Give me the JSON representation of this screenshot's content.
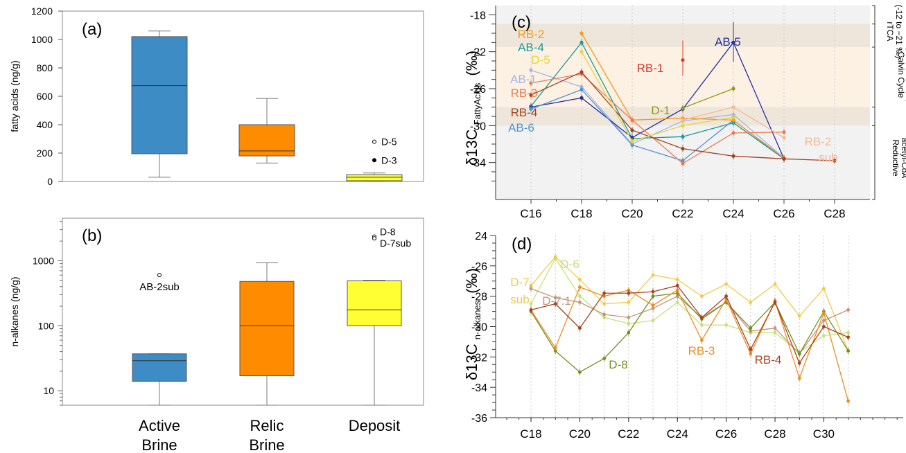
{
  "chart_data": [
    {
      "panel": "(a)",
      "type": "box",
      "ylabel": "fatty acids (ng/g)",
      "ylim": [
        0,
        1200
      ],
      "yticks": [
        0,
        200,
        400,
        600,
        800,
        1000,
        1200
      ],
      "grid": false,
      "boxes": [
        {
          "category": "Active Brine",
          "color": "#3e8cc6",
          "whisker_low": 30,
          "q1": 195,
          "median": 675,
          "q3": 1020,
          "whisker_high": 1060
        },
        {
          "category": "Relic Brine",
          "color": "#ff8c00",
          "whisker_low": 130,
          "q1": 180,
          "median": 215,
          "q3": 400,
          "whisker_high": 585
        },
        {
          "category": "Deposit",
          "color": "#ffff33",
          "whisker_low": 0,
          "q1": 5,
          "median": 30,
          "q3": 48,
          "whisker_high": 60
        }
      ],
      "outliers": [
        {
          "category": "Deposit",
          "value": 280,
          "label": "D-5",
          "filled": false
        },
        {
          "category": "Deposit",
          "value": 150,
          "label": "D-3",
          "filled": true
        }
      ]
    },
    {
      "panel": "(b)",
      "type": "box",
      "ylabel": "n-alkanes (ng/g)",
      "yscale": "log",
      "ylim": [
        6,
        4500
      ],
      "yticks": [
        10,
        100,
        1000
      ],
      "ytick_labels": [
        "10",
        "100",
        "1000"
      ],
      "categories": [
        "Active\nBrine",
        "Relic\nBrine",
        "Deposit"
      ],
      "boxes": [
        {
          "category": "Active Brine",
          "color": "#3e8cc6",
          "whisker_low": 6,
          "q1": 14,
          "median": 29,
          "q3": 37,
          "whisker_high": 37
        },
        {
          "category": "Relic Brine",
          "color": "#ff8c00",
          "whisker_low": 6,
          "q1": 17,
          "median": 100,
          "q3": 480,
          "whisker_high": 930
        },
        {
          "category": "Deposit",
          "color": "#ffff33",
          "whisker_low": 6,
          "q1": 100,
          "median": 175,
          "q3": 490,
          "whisker_high": 500
        }
      ],
      "outliers": [
        {
          "category": "Active Brine",
          "value": 600,
          "label": "AB-2sub",
          "filled": false
        },
        {
          "category": "Deposit",
          "value": 2350,
          "label": "D-8",
          "filled": false
        },
        {
          "category": "Deposit",
          "value": 2200,
          "label": "D-7sub",
          "filled": false
        }
      ]
    },
    {
      "panel": "(c)",
      "type": "line",
      "ylabel": "δ13C",
      "ylabel_sub": "FattyAcids",
      "ylabel_unit": "(‰)",
      "ylim": [
        -38,
        -17
      ],
      "yticks": [
        -18,
        -22,
        -26,
        -30,
        -34
      ],
      "categories": [
        "C16",
        "C18",
        "C20",
        "C22",
        "C24",
        "C26",
        "C28"
      ],
      "bands": [
        {
          "from": -21.5,
          "to": -19,
          "color": "#efe6db"
        },
        {
          "from": -28,
          "to": -21.5,
          "color": "#fdf1e4"
        },
        {
          "from": -30,
          "to": -28,
          "color": "#efe6db"
        }
      ],
      "side_labels": [
        {
          "text1": "rTCA",
          "text2": "(-12 to −21 ‰)"
        },
        {
          "text1": "Calvin Cycle",
          "text2": "(−19 to −30 ‰)"
        },
        {
          "text1": "Reductive",
          "text2": "acetyl-CoA",
          "text3": "(-28 to −44 ‰)"
        }
      ],
      "series": [
        {
          "name": "AB-1",
          "color": "#a9b4e6",
          "values": [
            -24.0,
            -25.8,
            -32.0,
            -29.5,
            -28.8,
            -33.5,
            null
          ]
        },
        {
          "name": "AB-4",
          "color": "#1a9a94",
          "values": [
            -27.9,
            -21.0,
            -31.4,
            -31.2,
            -29.7,
            -33.6,
            null
          ]
        },
        {
          "name": "AB-5",
          "color": "#1f2f9e",
          "values": [
            -28.0,
            -27.0,
            -31.3,
            -28.2,
            -21.0,
            -33.6,
            null
          ]
        },
        {
          "name": "AB-6",
          "color": "#4f91cf",
          "values": [
            -28.2,
            -26.1,
            -32.1,
            -33.8,
            -29.4,
            -33.6,
            null
          ]
        },
        {
          "name": "RB-1",
          "color": "#d63a2a",
          "values": [
            null,
            null,
            null,
            -22.9,
            null,
            null,
            null
          ]
        },
        {
          "name": "RB-2",
          "color": "#f39a20",
          "values": [
            null,
            -20.0,
            -29.4,
            -29.2,
            -29.4,
            -33.5,
            null
          ]
        },
        {
          "name": "RB-3",
          "color": "#ea7a52",
          "values": [
            -25.4,
            -24.4,
            -29.4,
            -34.1,
            -30.8,
            -30.7,
            null
          ]
        },
        {
          "name": "RB-4",
          "color": "#a2411b",
          "values": [
            -26.7,
            -24.2,
            -30.5,
            -32.5,
            -33.3,
            -33.6,
            -33.8
          ]
        },
        {
          "name": "RB-2 sub",
          "color": "#f5b892",
          "values": [
            null,
            null,
            null,
            -29.4,
            -28.0,
            -31.3,
            null
          ]
        },
        {
          "name": "D-1",
          "color": "#8f9a10",
          "values": [
            null,
            null,
            null,
            -28.1,
            -26.0,
            null,
            null
          ]
        },
        {
          "name": "D-5",
          "color": "#e3d43b",
          "values": [
            null,
            -22.0,
            -31.7,
            -30.0,
            -29.1,
            null,
            null
          ]
        }
      ],
      "labels": [
        "RB-2",
        "AB-4",
        "D-5",
        "AB-1",
        "RB-3",
        "RB-4",
        "AB-6",
        "RB-1",
        "AB-5",
        "D-1",
        "RB-2",
        "sub"
      ]
    },
    {
      "panel": "(d)",
      "type": "line",
      "ylabel": "δ13C",
      "ylabel_sub": "n-alkanes",
      "ylabel_unit": "(‰)",
      "ylim": [
        -36,
        24
      ],
      "yticks": [
        24,
        -26,
        -28,
        -30,
        -32,
        -34,
        -36
      ],
      "x": [
        18,
        19,
        20,
        21,
        22,
        23,
        24,
        25,
        26,
        27,
        28,
        29,
        30,
        31
      ],
      "xtick_labels": [
        "C18",
        "C20",
        "C22",
        "C24",
        "C26",
        "C28",
        "C30"
      ],
      "series": [
        {
          "name": "D-6",
          "color": "#c4e27a",
          "values": [
            -28.5,
            -25.5,
            -28.0,
            -29.4,
            -29.8,
            -29.6,
            -28.4,
            -29.9,
            -29.9,
            -30.4,
            -30.4,
            -31.7,
            -30.6,
            -30.4
          ]
        },
        {
          "name": "D-7 sub",
          "color": "#f0cb4a",
          "values": [
            -27.3,
            -25.4,
            -26.9,
            -28.5,
            -28.4,
            -26.6,
            -26.9,
            -28.0,
            -27.2,
            -28.4,
            -27.2,
            -29.3,
            -27.5,
            -31.6
          ]
        },
        {
          "name": "D-7.1",
          "color": "#c49478",
          "values": [
            -27.5,
            -28.1,
            -28.4,
            -29.2,
            -29.4,
            -28.8,
            -28.0,
            -29.4,
            -28.4,
            -30.3,
            -30.1,
            -31.8,
            -29.6,
            -28.9
          ]
        },
        {
          "name": "D-8",
          "color": "#6f8f1c",
          "values": [
            -29.0,
            -31.6,
            -33.0,
            -32.1,
            -30.4,
            -28.0,
            -27.8,
            -29.5,
            -28.4,
            -30.1,
            -28.4,
            -31.8,
            -29.0,
            -31.6
          ]
        },
        {
          "name": "RB-3",
          "color": "#f08c1e",
          "values": [
            -28.9,
            -31.4,
            -27.4,
            -28.0,
            -27.6,
            -28.6,
            -27.6,
            -30.9,
            -28.2,
            -31.8,
            -28.3,
            -33.4,
            -29.1,
            -34.9
          ]
        },
        {
          "name": "RB-4",
          "color": "#a6411d",
          "values": [
            -28.9,
            -28.5,
            -30.1,
            -27.8,
            -27.8,
            -27.7,
            -27.3,
            -29.4,
            -28.0,
            -31.5,
            -28.4,
            -32.4,
            -30.0,
            -30.7
          ]
        }
      ],
      "labels": [
        "D-6",
        "D-7",
        "sub",
        "D-7.1",
        "D-8",
        "RB-3",
        "RB-4"
      ]
    }
  ]
}
